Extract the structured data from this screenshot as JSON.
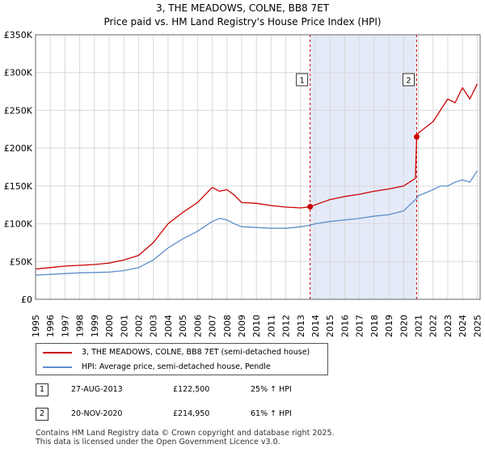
{
  "chart_data": {
    "type": "line",
    "title": "3, THE MEADOWS, COLNE, BB8 7ET",
    "subtitle": "Price paid vs. HM Land Registry's House Price Index (HPI)",
    "xlabel": "",
    "ylabel": "",
    "xlim": [
      1995,
      2025.2
    ],
    "ylim": [
      0,
      350000
    ],
    "x_ticks": [
      1995,
      1996,
      1997,
      1998,
      1999,
      2000,
      2001,
      2002,
      2003,
      2004,
      2005,
      2006,
      2007,
      2008,
      2009,
      2010,
      2011,
      2012,
      2013,
      2014,
      2015,
      2016,
      2017,
      2018,
      2019,
      2020,
      2021,
      2022,
      2023,
      2024,
      2025
    ],
    "y_ticks": [
      {
        "value": 0,
        "label": "£0"
      },
      {
        "value": 50000,
        "label": "£50K"
      },
      {
        "value": 100000,
        "label": "£100K"
      },
      {
        "value": 150000,
        "label": "£150K"
      },
      {
        "value": 200000,
        "label": "£200K"
      },
      {
        "value": 250000,
        "label": "£250K"
      },
      {
        "value": 300000,
        "label": "£300K"
      },
      {
        "value": 350000,
        "label": "£350K"
      }
    ],
    "grid": true,
    "highlight_band": [
      2013.65,
      2020.89
    ],
    "series": [
      {
        "name": "3, THE MEADOWS, COLNE, BB8 7ET (semi-detached house)",
        "color": "#cc0000",
        "x": [
          1995,
          1996,
          1997,
          1998,
          1999,
          2000,
          2001,
          2002,
          2003,
          2004,
          2005,
          2006,
          2007,
          2007.5,
          2008,
          2008.5,
          2009,
          2010,
          2011,
          2012,
          2013,
          2013.65,
          2014,
          2015,
          2016,
          2017,
          2018,
          2019,
          2020,
          2020.8,
          2020.89,
          2021,
          2022,
          2022.5,
          2023,
          2023.5,
          2024,
          2024.5,
          2025
        ],
        "y": [
          40000,
          42000,
          44000,
          45000,
          46000,
          48000,
          52000,
          58000,
          75000,
          100000,
          115000,
          128000,
          148000,
          143000,
          145000,
          138000,
          128000,
          127000,
          124000,
          122000,
          121000,
          122500,
          125000,
          132000,
          136000,
          139000,
          143000,
          146000,
          150000,
          160000,
          214950,
          220000,
          235000,
          250000,
          265000,
          260000,
          280000,
          265000,
          285000
        ]
      },
      {
        "name": "HPI: Average price, semi-detached house, Pendle",
        "color": "#5b8ec9",
        "x": [
          1995,
          1996,
          1997,
          1998,
          1999,
          2000,
          2001,
          2002,
          2003,
          2004,
          2005,
          2006,
          2007,
          2007.5,
          2008,
          2008.5,
          2009,
          2010,
          2011,
          2012,
          2013,
          2013.65,
          2014,
          2015,
          2016,
          2017,
          2018,
          2019,
          2020,
          2020.89,
          2021,
          2022,
          2022.5,
          2023,
          2023.5,
          2024,
          2024.5,
          2025
        ],
        "y": [
          32000,
          33000,
          34000,
          35000,
          35500,
          36000,
          38000,
          42000,
          52000,
          68000,
          80000,
          90000,
          103000,
          107000,
          105000,
          100000,
          96000,
          95000,
          94000,
          94000,
          96000,
          98000,
          100000,
          103000,
          105000,
          107000,
          110000,
          112000,
          117000,
          133500,
          137000,
          145000,
          150000,
          150000,
          155000,
          158000,
          155000,
          170000
        ]
      }
    ],
    "points": [
      {
        "label": "1",
        "x": 2013.65,
        "y": 122500
      },
      {
        "label": "2",
        "x": 2020.89,
        "y": 214950
      }
    ]
  },
  "legend": {
    "entries": [
      {
        "label": "3, THE MEADOWS, COLNE, BB8 7ET (semi-detached house)",
        "color": "#cc0000"
      },
      {
        "label": "HPI: Average price, semi-detached house, Pendle",
        "color": "#5b8ec9"
      }
    ]
  },
  "transactions": [
    {
      "num": "1",
      "date": "27-AUG-2013",
      "price": "£122,500",
      "hpi": "25% ↑ HPI"
    },
    {
      "num": "2",
      "date": "20-NOV-2020",
      "price": "£214,950",
      "hpi": "61% ↑ HPI"
    }
  ],
  "footer": {
    "line1": "Contains HM Land Registry data © Crown copyright and database right 2025.",
    "line2": "This data is licensed under the Open Government Licence v3.0."
  }
}
